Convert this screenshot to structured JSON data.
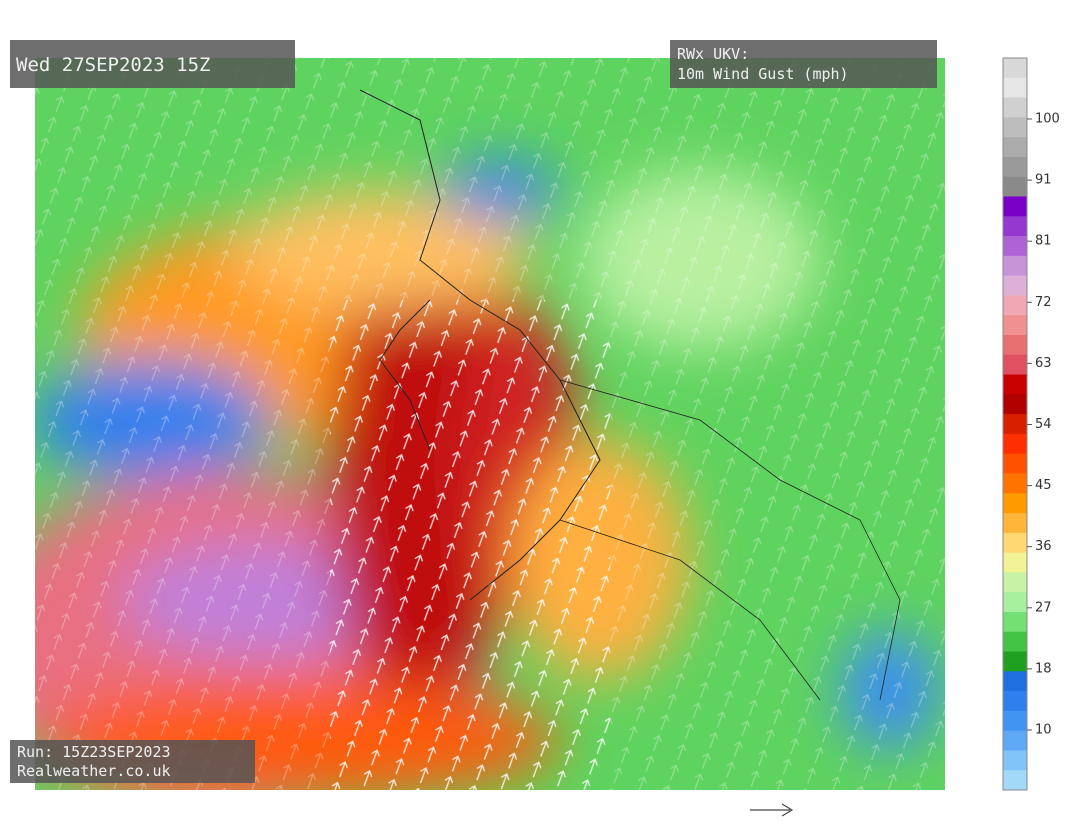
{
  "header": {
    "title": "Wed 27SEP2023 15Z",
    "product_line1": "RWx UKV:",
    "product_line2": "10m Wind Gust (mph)"
  },
  "footer": {
    "run": "Run: 15Z23SEP2023",
    "site": "Realweather.co.uk"
  },
  "colorbar": {
    "ticks": [
      100,
      91,
      81,
      72,
      63,
      54,
      45,
      36,
      27,
      18,
      10
    ],
    "colors": [
      "#d8d8d8",
      "#e6e6e6",
      "#d0d0d0",
      "#bdbdbd",
      "#acacac",
      "#9a9a9a",
      "#8a8a8a",
      "#7a00c8",
      "#9438d0",
      "#ad62d6",
      "#c894d8",
      "#deb0d8",
      "#f2a8b4",
      "#f09090",
      "#e87070",
      "#e05060",
      "#c80000",
      "#b00000",
      "#d82000",
      "#ff3000",
      "#ff5200",
      "#ff7400",
      "#ff9a00",
      "#ffb43a",
      "#ffd870",
      "#f2f296",
      "#c8f2a6",
      "#a6f0a0",
      "#74e074",
      "#44c444",
      "#20a020",
      "#1f6fe0",
      "#2f80ee",
      "#4094f2",
      "#5ea8f6",
      "#80c4f8",
      "#a2d8f8"
    ]
  }
}
